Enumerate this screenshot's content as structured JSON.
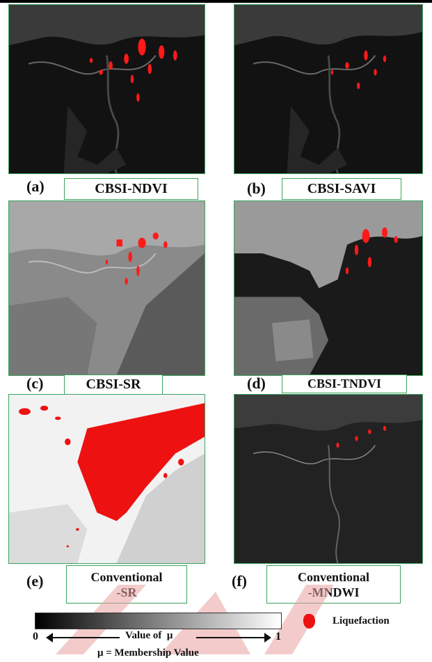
{
  "panels": [
    {
      "letter": "(a)",
      "caption": "CBSI-NDVI",
      "theme": "dark"
    },
    {
      "letter": "(b)",
      "caption": "CBSI-SAVI",
      "theme": "dark"
    },
    {
      "letter": "(c)",
      "caption": "CBSI-SR",
      "theme": "gray"
    },
    {
      "letter": "(d)",
      "caption": "CBSI-TNDVI",
      "theme": "contrast"
    },
    {
      "letter": "(e)",
      "caption_line1": "Conventional",
      "caption_line2": "-SR",
      "theme": "light"
    },
    {
      "letter": "(f)",
      "caption_line1": "Conventional",
      "caption_line2": "-MNDWI",
      "theme": "dark"
    }
  ],
  "legend": {
    "min": "0",
    "max": "1",
    "axis_label": "Value of  μ",
    "definition": "μ = Membership Value",
    "liquefaction_label": "Liquefaction",
    "liquefaction_color": "#ee1111"
  },
  "colors": {
    "border": "#3aa35a",
    "watermark": "#e9a0a0"
  }
}
